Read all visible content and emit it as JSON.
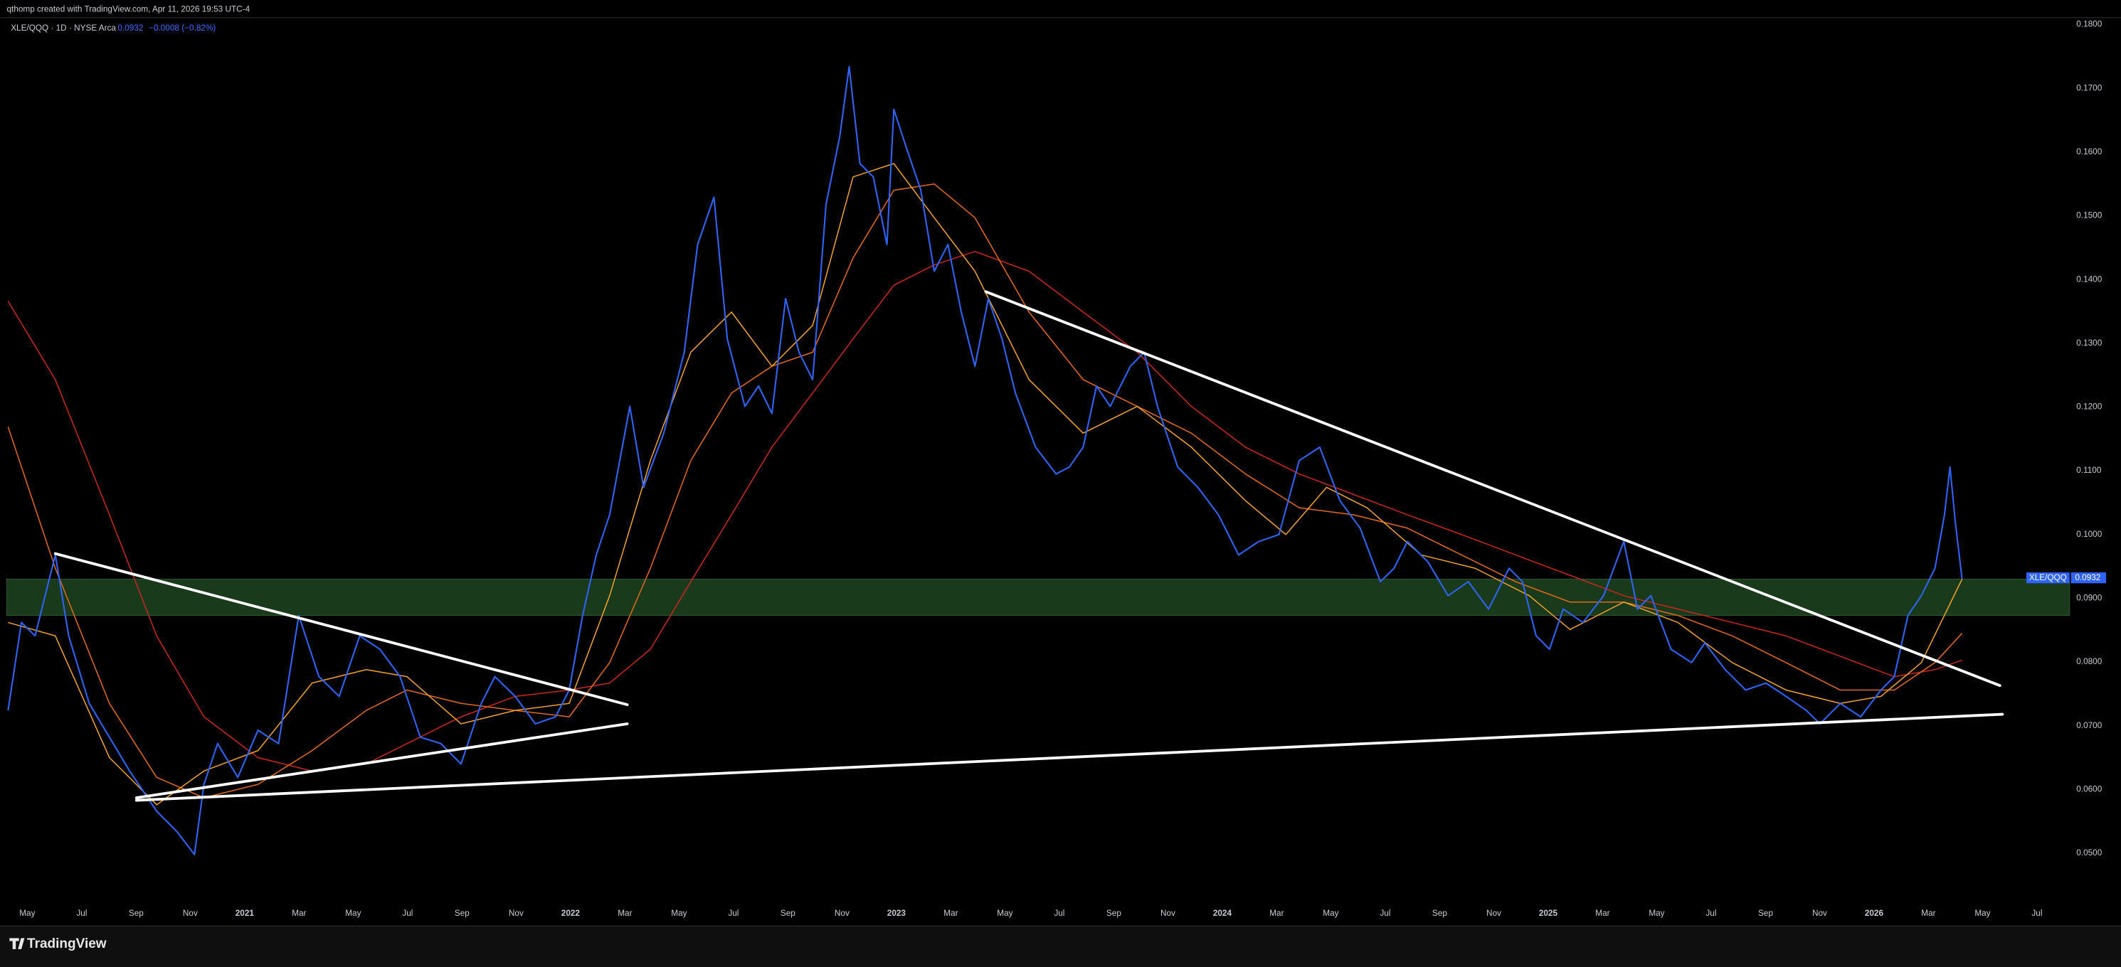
{
  "chart_data": {
    "type": "line",
    "title": "qthomp created with TradingView.com, Apr 11, 2026 19:53 UTC-4",
    "subtitle": "XLE/QQQ · 1D · NYSE Arca",
    "last_price": {
      "value": 0.0932,
      "label": "0.0932"
    },
    "change_label": "−0.0008 (−0.82%)",
    "brand": "TradingView",
    "grid": false,
    "xlim": [
      2020.27,
      2026.6
    ],
    "ylim": [
      0.0422,
      0.1811
    ],
    "xticks": [
      {
        "value": 2020.333,
        "label": "May"
      },
      {
        "value": 2020.5,
        "label": "Jul"
      },
      {
        "value": 2020.667,
        "label": "Sep"
      },
      {
        "value": 2020.833,
        "label": "Nov"
      },
      2021,
      {
        "value": 2021.167,
        "label": "Mar"
      },
      {
        "value": 2021.333,
        "label": "May"
      },
      {
        "value": 2021.5,
        "label": "Jul"
      },
      {
        "value": 2021.667,
        "label": "Sep"
      },
      {
        "value": 2021.833,
        "label": "Nov"
      },
      2022,
      {
        "value": 2022.167,
        "label": "Mar"
      },
      {
        "value": 2022.333,
        "label": "May"
      },
      {
        "value": 2022.5,
        "label": "Jul"
      },
      {
        "value": 2022.667,
        "label": "Sep"
      },
      {
        "value": 2022.833,
        "label": "Nov"
      },
      2023,
      {
        "value": 2023.167,
        "label": "Mar"
      },
      {
        "value": 2023.333,
        "label": "May"
      },
      {
        "value": 2023.5,
        "label": "Jul"
      },
      {
        "value": 2023.667,
        "label": "Sep"
      },
      {
        "value": 2023.833,
        "label": "Nov"
      },
      2024,
      {
        "value": 2024.167,
        "label": "Mar"
      },
      {
        "value": 2024.333,
        "label": "May"
      },
      {
        "value": 2024.5,
        "label": "Jul"
      },
      {
        "value": 2024.667,
        "label": "Sep"
      },
      {
        "value": 2024.833,
        "label": "Nov"
      },
      2025,
      {
        "value": 2025.167,
        "label": "Mar"
      },
      {
        "value": 2025.333,
        "label": "May"
      },
      {
        "value": 2025.5,
        "label": "Jul"
      },
      {
        "value": 2025.667,
        "label": "Sep"
      },
      {
        "value": 2025.833,
        "label": "Nov"
      },
      2026,
      {
        "value": 2026.167,
        "label": "Mar"
      },
      {
        "value": 2026.333,
        "label": "May"
      },
      {
        "value": 2026.5,
        "label": "Jul"
      }
    ],
    "yticks": [
      {
        "value": 0.05,
        "label": "0.0500"
      },
      {
        "value": 0.06,
        "label": "0.0600"
      },
      {
        "value": 0.07,
        "label": "0.0700"
      },
      {
        "value": 0.08,
        "label": "0.0800"
      },
      {
        "value": 0.09,
        "label": "0.0900"
      },
      {
        "value": 0.1,
        "label": "0.1000"
      },
      {
        "value": 0.11,
        "label": "0.1100"
      },
      {
        "value": 0.12,
        "label": "0.1200"
      },
      {
        "value": 0.13,
        "label": "0.1300"
      },
      {
        "value": 0.14,
        "label": "0.1400"
      },
      {
        "value": 0.15,
        "label": "0.1500"
      },
      {
        "value": 0.16,
        "label": "0.1600"
      },
      {
        "value": 0.17,
        "label": "0.1700"
      },
      {
        "value": 0.18,
        "label": "0.1800"
      }
    ],
    "highlight_band": [
      0.0873,
      0.093
    ],
    "band_color": "#1a3a1c",
    "trendline_color": "#ffffff",
    "trendlines": [
      {
        "x": [
          2020.419,
          2022.174
        ],
        "values": [
          0.097,
          0.0733
        ]
      },
      {
        "x": [
          2020.668,
          2022.174
        ],
        "values": [
          0.0587,
          0.0703
        ]
      },
      {
        "x": [
          2020.668,
          2026.394
        ],
        "values": [
          0.0583,
          0.0718
        ]
      },
      {
        "x": [
          2023.274,
          2026.386
        ],
        "values": [
          0.1381,
          0.0763
        ]
      }
    ],
    "series": [
      {
        "name": "XLE/QQQ",
        "color": "#2f63f5",
        "width": 1.1,
        "x": [
          2020.274,
          2020.315,
          2020.357,
          2020.419,
          2020.46,
          2020.523,
          2020.585,
          2020.647,
          2020.689,
          2020.73,
          2020.792,
          2020.846,
          2020.875,
          2020.917,
          2020.979,
          2021.041,
          2021.104,
          2021.166,
          2021.228,
          2021.29,
          2021.353,
          2021.415,
          2021.477,
          2021.539,
          2021.602,
          2021.664,
          2021.726,
          2021.768,
          2021.83,
          2021.892,
          2021.954,
          2021.996,
          2022.037,
          2022.079,
          2022.12,
          2022.182,
          2022.224,
          2022.286,
          2022.349,
          2022.39,
          2022.44,
          2022.481,
          2022.535,
          2022.577,
          2022.618,
          2022.66,
          2022.701,
          2022.743,
          2022.784,
          2022.826,
          2022.855,
          2022.888,
          2022.929,
          2022.971,
          2022.992,
          2023.033,
          2023.075,
          2023.116,
          2023.158,
          2023.199,
          2023.241,
          2023.282,
          2023.324,
          2023.365,
          2023.427,
          2023.49,
          2023.531,
          2023.573,
          2023.614,
          2023.656,
          2023.718,
          2023.76,
          2023.801,
          2023.863,
          2023.925,
          2023.988,
          2024.05,
          2024.112,
          2024.174,
          2024.236,
          2024.299,
          2024.361,
          2024.423,
          2024.485,
          2024.527,
          2024.568,
          2024.631,
          2024.693,
          2024.755,
          2024.817,
          2024.88,
          2024.921,
          2024.963,
          2025.004,
          2025.046,
          2025.107,
          2025.17,
          2025.232,
          2025.274,
          2025.315,
          2025.377,
          2025.44,
          2025.481,
          2025.543,
          2025.606,
          2025.668,
          2025.73,
          2025.792,
          2025.834,
          2025.896,
          2025.959,
          2026.021,
          2026.062,
          2026.104,
          2026.145,
          2026.187,
          2026.216,
          2026.233,
          2026.249,
          2026.27
        ],
        "values": [
          0.0724,
          0.0862,
          0.0841,
          0.0968,
          0.0841,
          0.0735,
          0.0682,
          0.0629,
          0.0597,
          0.0566,
          0.0534,
          0.0498,
          0.0608,
          0.0672,
          0.0619,
          0.0693,
          0.0672,
          0.0873,
          0.0777,
          0.0746,
          0.0841,
          0.082,
          0.0777,
          0.0682,
          0.0672,
          0.064,
          0.0735,
          0.0777,
          0.0746,
          0.0703,
          0.0714,
          0.0756,
          0.0873,
          0.0968,
          0.1031,
          0.1201,
          0.1074,
          0.1159,
          0.1286,
          0.1455,
          0.1529,
          0.1307,
          0.1201,
          0.1233,
          0.119,
          0.137,
          0.1286,
          0.1243,
          0.1518,
          0.1624,
          0.1734,
          0.1582,
          0.1561,
          0.1455,
          0.1667,
          0.1603,
          0.154,
          0.1413,
          0.1455,
          0.1349,
          0.1264,
          0.137,
          0.1307,
          0.1222,
          0.1137,
          0.1095,
          0.1106,
          0.1137,
          0.1233,
          0.1201,
          0.1264,
          0.1286,
          0.1201,
          0.1106,
          0.1074,
          0.1031,
          0.0968,
          0.0989,
          0.1,
          0.1116,
          0.1137,
          0.1053,
          0.101,
          0.0926,
          0.0947,
          0.0989,
          0.0957,
          0.0904,
          0.0926,
          0.0883,
          0.0947,
          0.0926,
          0.0841,
          0.082,
          0.0883,
          0.0862,
          0.0904,
          0.0989,
          0.0883,
          0.0904,
          0.082,
          0.0799,
          0.083,
          0.0788,
          0.0756,
          0.0767,
          0.0746,
          0.0724,
          0.0703,
          0.0735,
          0.0714,
          0.0756,
          0.0777,
          0.0873,
          0.0904,
          0.0947,
          0.1031,
          0.1106,
          0.1021,
          0.093
        ]
      },
      {
        "color": "#f0a12a",
        "width": 0.8,
        "x": [
          2020.274,
          2020.419,
          2020.585,
          2020.73,
          2020.875,
          2021.041,
          2021.207,
          2021.373,
          2021.498,
          2021.664,
          2021.83,
          2021.996,
          2022.12,
          2022.245,
          2022.369,
          2022.494,
          2022.618,
          2022.743,
          2022.867,
          2022.992,
          2023.116,
          2023.241,
          2023.407,
          2023.573,
          2023.739,
          2023.905,
          2024.071,
          2024.195,
          2024.32,
          2024.444,
          2024.61,
          2024.776,
          2024.942,
          2025.067,
          2025.232,
          2025.398,
          2025.565,
          2025.73,
          2025.896,
          2026.021,
          2026.145,
          2026.27
        ],
        "values": [
          0.0862,
          0.0841,
          0.065,
          0.0576,
          0.0629,
          0.0661,
          0.0767,
          0.0788,
          0.0777,
          0.0703,
          0.0724,
          0.0735,
          0.0904,
          0.1116,
          0.1286,
          0.1349,
          0.1264,
          0.1328,
          0.1561,
          0.1582,
          0.1497,
          0.1413,
          0.1243,
          0.1159,
          0.1201,
          0.1137,
          0.1053,
          0.1,
          0.1074,
          0.1042,
          0.0968,
          0.0947,
          0.0904,
          0.0851,
          0.0894,
          0.0862,
          0.0799,
          0.0756,
          0.0735,
          0.0746,
          0.0799,
          0.093
        ]
      },
      {
        "color": "#e2691c",
        "width": 0.8,
        "x": [
          2020.274,
          2020.419,
          2020.585,
          2020.73,
          2020.875,
          2021.041,
          2021.207,
          2021.373,
          2021.498,
          2021.664,
          2021.83,
          2021.996,
          2022.12,
          2022.245,
          2022.369,
          2022.494,
          2022.618,
          2022.743,
          2022.867,
          2022.992,
          2023.116,
          2023.241,
          2023.407,
          2023.573,
          2023.739,
          2023.905,
          2024.071,
          2024.236,
          2024.402,
          2024.568,
          2024.734,
          2024.9,
          2025.067,
          2025.232,
          2025.398,
          2025.565,
          2025.73,
          2025.896,
          2026.062,
          2026.187,
          2026.27
        ],
        "values": [
          0.1169,
          0.0947,
          0.0735,
          0.0619,
          0.0587,
          0.0608,
          0.0661,
          0.0724,
          0.0756,
          0.0735,
          0.0724,
          0.0714,
          0.0799,
          0.0947,
          0.1116,
          0.1222,
          0.1264,
          0.1286,
          0.1434,
          0.154,
          0.155,
          0.1497,
          0.1349,
          0.1243,
          0.1201,
          0.1159,
          0.1095,
          0.1042,
          0.1031,
          0.101,
          0.0968,
          0.0926,
          0.0894,
          0.0894,
          0.0873,
          0.0841,
          0.0799,
          0.0756,
          0.0756,
          0.0799,
          0.0845
        ]
      },
      {
        "color": "#c9261f",
        "width": 0.8,
        "x": [
          2020.274,
          2020.419,
          2020.585,
          2020.73,
          2020.875,
          2021.041,
          2021.207,
          2021.373,
          2021.498,
          2021.664,
          2021.83,
          2021.996,
          2022.12,
          2022.245,
          2022.369,
          2022.494,
          2022.618,
          2022.743,
          2022.867,
          2022.992,
          2023.116,
          2023.241,
          2023.407,
          2023.573,
          2023.739,
          2023.905,
          2024.071,
          2024.236,
          2024.402,
          2024.568,
          2024.734,
          2024.9,
          2025.067,
          2025.232,
          2025.398,
          2025.565,
          2025.73,
          2025.896,
          2026.062,
          2026.187,
          2026.27
        ],
        "values": [
          0.1366,
          0.1243,
          0.1031,
          0.0841,
          0.0714,
          0.065,
          0.0629,
          0.064,
          0.0672,
          0.0714,
          0.0746,
          0.0756,
          0.0767,
          0.082,
          0.0926,
          0.1031,
          0.1137,
          0.1222,
          0.1307,
          0.1391,
          0.1423,
          0.1444,
          0.1413,
          0.1349,
          0.1286,
          0.1201,
          0.1137,
          0.1095,
          0.1063,
          0.1031,
          0.1,
          0.0968,
          0.0936,
          0.0904,
          0.0883,
          0.0862,
          0.0841,
          0.0809,
          0.0777,
          0.0788,
          0.0803
        ]
      }
    ]
  }
}
